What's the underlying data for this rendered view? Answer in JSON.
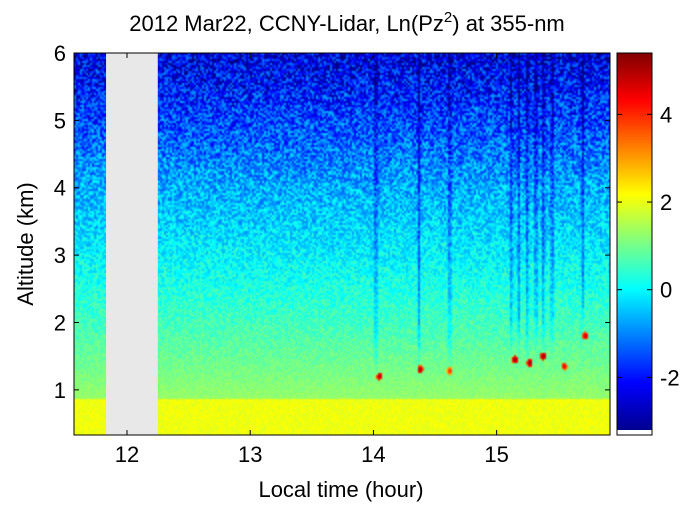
{
  "chart_data": {
    "type": "heatmap",
    "title_main": "2012 Mar22, CCNY-Lidar, Ln(Pz",
    "title_sup": "2",
    "title_tail": ") at 355-nm",
    "xlabel": "Local time (hour)",
    "ylabel": "Altitude (km)",
    "xlim": [
      11.57,
      15.92
    ],
    "ylim": [
      0.33,
      6.0
    ],
    "x_ticks": [
      "12",
      "13",
      "14",
      "15"
    ],
    "y_ticks": [
      "1",
      "2",
      "3",
      "4",
      "5",
      "6"
    ],
    "colorbar": {
      "colormap": "jet",
      "range": [
        -3.2,
        5.4
      ],
      "ticks": [
        "-2",
        "0",
        "2",
        "4"
      ]
    },
    "data_gaps": [
      [
        11.83,
        12.25
      ]
    ],
    "gap_color": "#e8e8e8",
    "grid": false,
    "features": {
      "boundary_layer_top_km": 0.85,
      "cloud_events": [
        {
          "x": 14.05,
          "y": 1.2,
          "value": 5.0
        },
        {
          "x": 14.38,
          "y": 1.3,
          "value": 5.0
        },
        {
          "x": 14.62,
          "y": 1.28,
          "value": 4.0
        },
        {
          "x": 15.15,
          "y": 1.45,
          "value": 5.2
        },
        {
          "x": 15.27,
          "y": 1.4,
          "value": 5.2
        },
        {
          "x": 15.38,
          "y": 1.5,
          "value": 5.2
        },
        {
          "x": 15.55,
          "y": 1.35,
          "value": 4.5
        },
        {
          "x": 15.72,
          "y": 1.8,
          "value": 4.8
        }
      ],
      "attenuated_columns": [
        14.02,
        14.37,
        14.62,
        15.12,
        15.18,
        15.25,
        15.32,
        15.38,
        15.45,
        15.7
      ]
    }
  }
}
